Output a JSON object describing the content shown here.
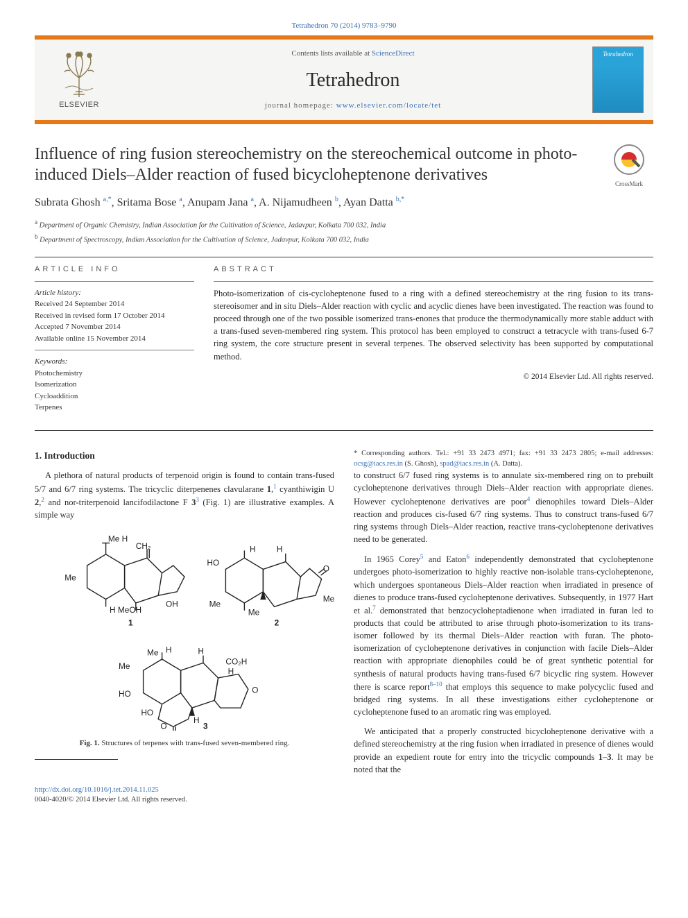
{
  "citation": "Tetrahedron 70 (2014) 9783–9790",
  "header": {
    "contents_prefix": "Contents lists available at ",
    "contents_link": "ScienceDirect",
    "journal_title": "Tetrahedron",
    "homepage_prefix": "journal homepage: ",
    "homepage_link": "www.elsevier.com/locate/tet",
    "publisher_label": "ELSEVIER",
    "cover_label": "Tetrahedron"
  },
  "title": "Influence of ring fusion stereochemistry on the stereochemical outcome in photo-induced Diels–Alder reaction of fused bicycloheptenone derivatives",
  "crossmark_label": "CrossMark",
  "authors_html": "Subrata Ghosh <sup>a,*</sup>, Sritama Bose <sup>a</sup>, Anupam Jana <sup>a</sup>, A. Nijamudheen <sup>b</sup>, Ayan Datta <sup>b,*</sup>",
  "affiliations": [
    {
      "sup": "a",
      "text": "Department of Organic Chemistry, Indian Association for the Cultivation of Science, Jadavpur, Kolkata 700 032, India"
    },
    {
      "sup": "b",
      "text": "Department of Spectroscopy, Indian Association for the Cultivation of Science, Jadavpur, Kolkata 700 032, India"
    }
  ],
  "article_info": {
    "heading": "ARTICLE INFO",
    "history_label": "Article history:",
    "history": [
      "Received 24 September 2014",
      "Received in revised form 17 October 2014",
      "Accepted 7 November 2014",
      "Available online 15 November 2014"
    ],
    "keywords_label": "Keywords:",
    "keywords": [
      "Photochemistry",
      "Isomerization",
      "Cycloaddition",
      "Terpenes"
    ]
  },
  "abstract": {
    "heading": "ABSTRACT",
    "text": "Photo-isomerization of cis-cycloheptenone fused to a ring with a defined stereochemistry at the ring fusion to its trans-stereoisomer and in situ Diels–Alder reaction with cyclic and acyclic dienes have been investigated. The reaction was found to proceed through one of the two possible isomerized trans-enones that produce the thermodynamically more stable adduct with a trans-fused seven-membered ring system. This protocol has been employed to construct a tetracycle with trans-fused 6-7 ring system, the core structure present in several terpenes. The observed selectivity has been supported by computational method.",
    "copyright": "© 2014 Elsevier Ltd. All rights reserved."
  },
  "body": {
    "section1_title": "1. Introduction",
    "para1_pre": "A plethora of natural products of terpenoid origin is found to contain trans-fused 5/7 and 6/7 ring systems. The tricyclic diterpenenes clavularane ",
    "b1": "1",
    "para1_mid1": ",",
    "ref1": "1",
    "para1_mid2": " cyanthiwigin U ",
    "b2": "2",
    "para1_mid3": ",",
    "ref2": "2",
    "para1_mid4": " and nor-triterpenoid lancifodilactone F ",
    "b3": "3",
    "ref3": "3",
    "para1_post": " (Fig. 1) are illustrative examples. A simple way",
    "fig1_label": "Fig. 1.",
    "fig1_caption": " Structures of terpenes with trans-fused seven-membered ring.",
    "para2_a": "to construct 6/7 fused ring systems is to annulate six-membered ring on to prebuilt cycloheptenone derivatives through Diels–Alder reaction with appropriate dienes. However cycloheptenone derivatives are poor",
    "ref4": "4",
    "para2_b": " dienophiles toward Diels–Alder reaction and produces cis-fused 6/7 ring systems. Thus to construct trans-fused 6/7 ring systems through Diels–Alder reaction, reactive trans-cycloheptenone derivatives need to be generated.",
    "para3_a": "In 1965 Corey",
    "ref5": "5",
    "para3_b": " and Eaton",
    "ref6": "6",
    "para3_c": " independently demonstrated that cycloheptenone undergoes photo-isomerization to highly reactive non-isolable trans-cycloheptenone, which undergoes spontaneous Diels–Alder reaction when irradiated in presence of dienes to produce trans-fused cycloheptenone derivatives. Subsequently, in 1977 Hart et al.",
    "ref7": "7",
    "para3_d": " demonstrated that benzocycloheptadienone when irradiated in furan led to products that could be attributed to arise through photo-isomerization to its trans-isomer followed by its thermal Diels–Alder reaction with furan. The photo-isomerization of cycloheptenone derivatives in conjunction with facile Diels–Alder reaction with appropriate dienophiles could be of great synthetic potential for synthesis of natural products having trans-fused 6/7 bicyclic ring system. However there is scarce report",
    "ref8": "8–10",
    "para3_e": " that employs this sequence to make polycyclic fused and bridged ring systems. In all these investigations either cycloheptenone or cycloheptenone fused to an aromatic ring was employed.",
    "para4_a": "We anticipated that a properly constructed bicycloheptenone derivative with a defined stereochemistry at the ring fusion when irradiated in presence of dienes would provide an expedient route for entry into the tricyclic compounds ",
    "b1b": "1",
    "para4_dash": "–",
    "b3b": "3",
    "para4_b": ". It may be noted that the"
  },
  "footnote": {
    "star": "*",
    "text_a": " Corresponding authors. Tel.: +91 33 2473 4971; fax: +91 33 2473 2805; e-mail addresses: ",
    "email1": "ocsg@iacs.res.in",
    "text_b": " (S. Ghosh), ",
    "email2": "spad@iacs.res.in",
    "text_c": " (A. Datta)."
  },
  "footer": {
    "doi": "http://dx.doi.org/10.1016/j.tet.2014.11.025",
    "copyright": "0040-4020/© 2014 Elsevier Ltd. All rights reserved."
  },
  "colors": {
    "orange": "#e77817",
    "link": "#3b6fb6",
    "text": "#2a2a2a",
    "cover_blue": "#2aa3d8"
  }
}
